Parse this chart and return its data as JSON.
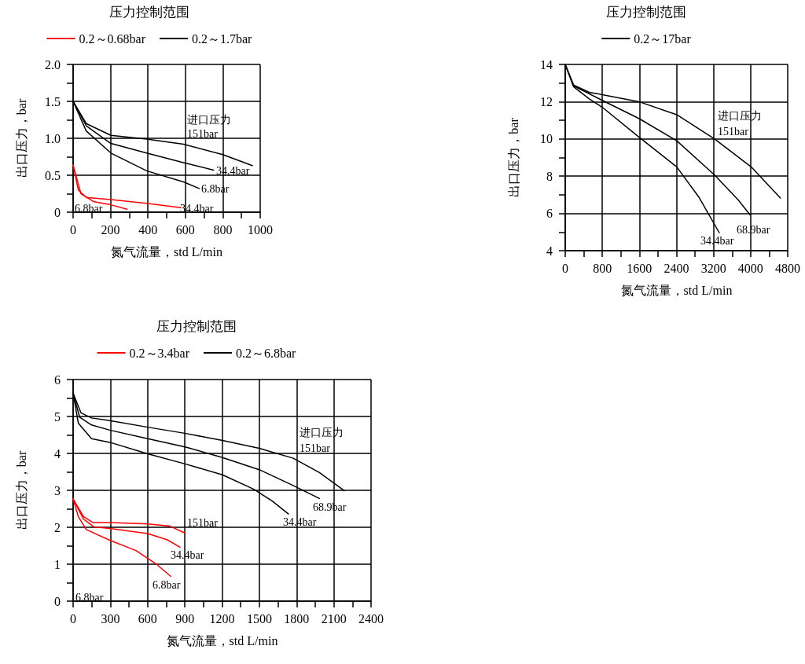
{
  "chart_data": [
    {
      "type": "line",
      "title": "压力控制范围",
      "xlabel": "氮气流量，std L/min",
      "ylabel": "出口压力，bar",
      "legend": "top",
      "grid": true,
      "marker": "none",
      "line_style": "solid",
      "xlim": [
        0,
        1000
      ],
      "xticks": [
        0,
        {
          "value": 100,
          "label": null
        },
        200,
        {
          "value": 300,
          "label": null
        },
        400,
        {
          "value": 500,
          "label": null
        },
        600,
        {
          "value": 700,
          "label": null
        },
        800,
        {
          "value": 900,
          "label": null
        },
        1000
      ],
      "ylim": [
        0,
        2
      ],
      "yticks": [
        0,
        {
          "value": 0.25,
          "label": null
        },
        0.5,
        {
          "value": 0.75,
          "label": null
        },
        {
          "value": 1,
          "label": "1.0"
        },
        {
          "value": 1.25,
          "label": null
        },
        1.5,
        {
          "value": 1.75,
          "label": null
        },
        {
          "value": 2,
          "label": "2.0"
        }
      ],
      "series": [
        {
          "name": "0.2～0.68bar",
          "color": "#ff0000",
          "x": [
            0,
            28,
            70,
            202,
            393,
            576
          ],
          "values": [
            0.64,
            0.3,
            0.2,
            0.17,
            0.12,
            0.06
          ]
        },
        {
          "color": "#ff0000",
          "x": [
            0,
            42,
            112,
            202,
            288
          ],
          "values": [
            0.64,
            0.25,
            0.14,
            0.1,
            0.04
          ]
        },
        {
          "name": "0.2～1.7bar",
          "color": "#000000",
          "x": [
            0,
            70,
            202,
            393,
            590,
            800,
            958
          ],
          "values": [
            1.5,
            1.2,
            1.04,
            0.99,
            0.92,
            0.78,
            0.63
          ]
        },
        {
          "color": "#000000",
          "x": [
            0,
            70,
            202,
            393,
            590,
            751
          ],
          "values": [
            1.5,
            1.17,
            0.93,
            0.8,
            0.67,
            0.57
          ]
        },
        {
          "color": "#000000",
          "x": [
            0,
            70,
            202,
            393,
            590,
            674
          ],
          "values": [
            1.5,
            1.1,
            0.8,
            0.56,
            0.41,
            0.32
          ]
        }
      ],
      "annotations": [
        "进口压力",
        "151bar",
        "34.4bar",
        "6.8bar",
        "6.8bar",
        "34.4bar"
      ]
    },
    {
      "type": "line",
      "title": "压力控制范围",
      "xlabel": "氮气流量，std L/min",
      "ylabel": "出口压力，bar",
      "legend": "top",
      "grid": true,
      "marker": "none",
      "line_style": "solid",
      "xlim": [
        0,
        4800
      ],
      "xticks": [
        0,
        {
          "value": 400,
          "label": null
        },
        800,
        {
          "value": 1200,
          "label": null
        },
        1600,
        {
          "value": 2000,
          "label": null
        },
        2400,
        {
          "value": 2800,
          "label": null
        },
        3200,
        {
          "value": 3600,
          "label": null
        },
        4000,
        {
          "value": 4400,
          "label": null
        },
        4800
      ],
      "ylim": [
        4,
        14
      ],
      "yticks": [
        4,
        {
          "value": 5,
          "label": null
        },
        6,
        {
          "value": 7,
          "label": null
        },
        8,
        {
          "value": 9,
          "label": null
        },
        10,
        {
          "value": 11,
          "label": null
        },
        12,
        {
          "value": 13,
          "label": null
        },
        14
      ],
      "series": [
        {
          "name": "0.2～17bar",
          "color": "#000000",
          "x": [
            0,
            180,
            518,
            800,
            1589,
            2406,
            3223,
            4011,
            4642
          ],
          "values": [
            14,
            12.9,
            12.5,
            12.38,
            12.0,
            11.3,
            10.0,
            8.5,
            6.83
          ]
        },
        {
          "color": "#000000",
          "x": [
            0,
            180,
            800,
            1589,
            2406,
            3223,
            3730,
            3989
          ],
          "values": [
            14,
            12.85,
            12.07,
            11.1,
            9.9,
            8.06,
            6.73,
            5.92
          ]
        },
        {
          "color": "#000000",
          "x": [
            0,
            180,
            518,
            800,
            1589,
            2406,
            2885,
            3324
          ],
          "values": [
            14,
            12.8,
            12.15,
            11.7,
            10.1,
            8.5,
            6.87,
            4.96
          ]
        }
      ],
      "annotations": [
        "进口压力",
        "151bar",
        "68.9bar",
        "34.4bar"
      ]
    },
    {
      "type": "line",
      "title": "压力控制范围",
      "xlabel": "氮气流量，std L/min",
      "ylabel": "出口压力，bar",
      "legend": "top",
      "grid": true,
      "marker": "none",
      "line_style": "solid",
      "xlim": [
        0,
        2400
      ],
      "xticks": [
        0,
        {
          "value": 150,
          "label": null
        },
        300,
        {
          "value": 450,
          "label": null
        },
        600,
        {
          "value": 750,
          "label": null
        },
        900,
        {
          "value": 1050,
          "label": null
        },
        1200,
        {
          "value": 1350,
          "label": null
        },
        1500,
        {
          "value": 1650,
          "label": null
        },
        1800,
        {
          "value": 1950,
          "label": null
        },
        2100,
        {
          "value": 2250,
          "label": null
        },
        2400
      ],
      "ylim": [
        0,
        6
      ],
      "yticks": [
        0,
        {
          "value": 0.5,
          "label": null
        },
        1,
        {
          "value": 1.5,
          "label": null
        },
        2,
        {
          "value": 2.5,
          "label": null
        },
        3,
        {
          "value": 3.5,
          "label": null
        },
        4,
        {
          "value": 4.5,
          "label": null
        },
        5,
        {
          "value": 5.5,
          "label": null
        },
        6
      ],
      "series": [
        {
          "name": "0.2～3.4bar",
          "color": "#ff0000",
          "x": [
            0,
            84,
            158,
            295,
            601,
            781,
            903
          ],
          "values": [
            2.77,
            2.29,
            2.13,
            2.13,
            2.09,
            2.03,
            1.84
          ]
        },
        {
          "color": "#ff0000",
          "x": [
            0,
            84,
            169,
            295,
            601,
            760,
            861
          ],
          "values": [
            2.77,
            2.22,
            2.01,
            1.97,
            1.83,
            1.66,
            1.46
          ]
        },
        {
          "color": "#ff0000",
          "x": [
            0,
            42,
            106,
            295,
            507,
            675,
            787
          ],
          "values": [
            2.77,
            2.29,
            1.94,
            1.65,
            1.37,
            0.99,
            0.67
          ]
        },
        {
          "name": "0.2～6.8bar",
          "color": "#000000",
          "x": [
            0,
            63,
            148,
            295,
            601,
            908,
            1203,
            1499,
            1773,
            1984,
            2184
          ],
          "values": [
            5.63,
            5.1,
            4.96,
            4.89,
            4.71,
            4.54,
            4.35,
            4.14,
            3.87,
            3.48,
            2.99
          ]
        },
        {
          "color": "#000000",
          "x": [
            0,
            53,
            148,
            295,
            601,
            908,
            1203,
            1499,
            1773,
            1984
          ],
          "values": [
            5.63,
            4.98,
            4.77,
            4.63,
            4.4,
            4.17,
            3.89,
            3.56,
            3.13,
            2.78
          ]
        },
        {
          "color": "#000000",
          "x": [
            0,
            42,
            148,
            295,
            601,
            908,
            1203,
            1456,
            1604,
            1735
          ],
          "values": [
            5.63,
            4.82,
            4.4,
            4.3,
            3.99,
            3.71,
            3.42,
            3.03,
            2.71,
            2.36
          ]
        }
      ],
      "annotations": [
        "进口压力",
        "151bar",
        "68.9bar",
        "34.4bar",
        "151bar",
        "34.4bar",
        "6.8bar",
        "6.8bar"
      ]
    }
  ]
}
